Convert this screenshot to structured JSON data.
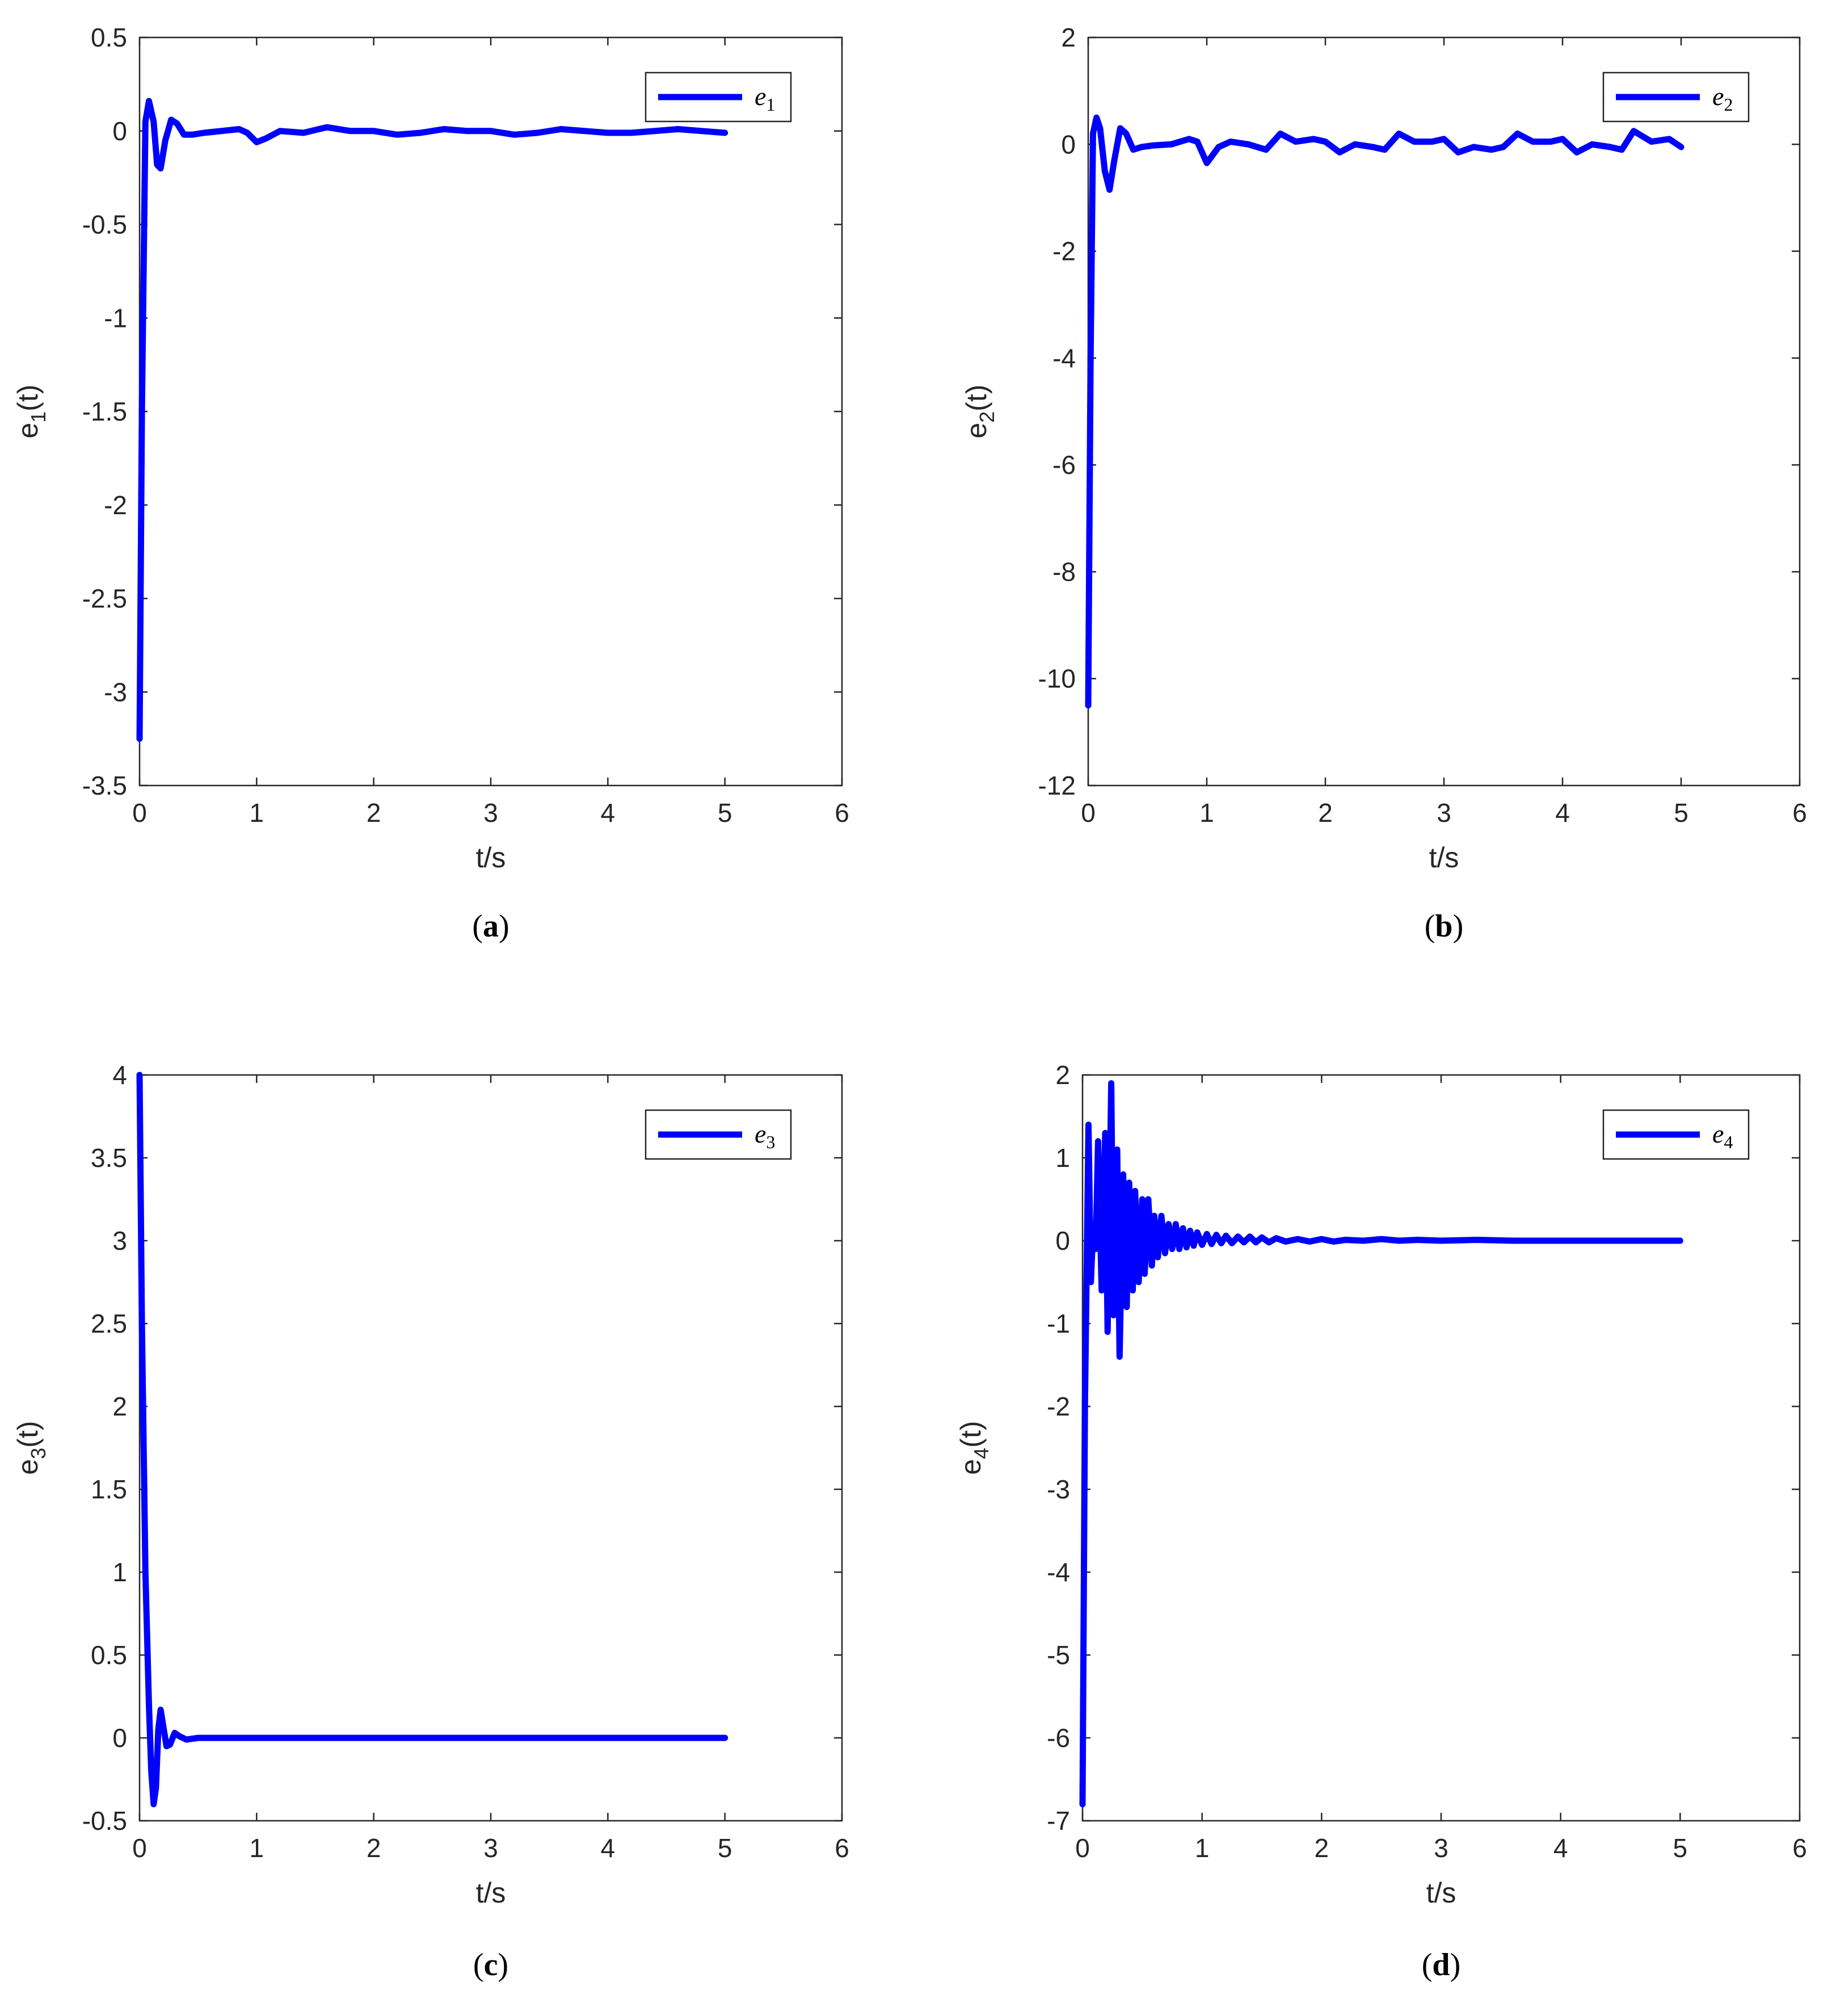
{
  "line_color": "#0000ff",
  "chart_data": [
    {
      "type": "line",
      "caption": "a",
      "xlabel": "t/s",
      "ylabel": "e",
      "ylabel_sub": "1",
      "ylabel_suffix": "(t)",
      "xlim": [
        0,
        6
      ],
      "ylim": [
        -3.5,
        0.5
      ],
      "xticks": [
        0,
        1,
        2,
        3,
        4,
        5,
        6
      ],
      "xtick_labels": [
        "0",
        "1",
        "2",
        "3",
        "4",
        "5",
        "6"
      ],
      "yticks": [
        -3.5,
        -3,
        -2.5,
        -2,
        -1.5,
        -1,
        -0.5,
        0,
        0.5
      ],
      "ytick_labels": [
        "-3.5",
        "-3",
        "-2.5",
        "-2",
        "-1.5",
        "-1",
        "-0.5",
        "0",
        "0.5"
      ],
      "grid": false,
      "legend_position": "top-right",
      "series": [
        {
          "name": "e",
          "name_sub": "1",
          "x": [
            0,
            0.02,
            0.05,
            0.08,
            0.12,
            0.15,
            0.18,
            0.22,
            0.27,
            0.32,
            0.38,
            0.45,
            0.55,
            0.7,
            0.85,
            0.92,
            1.0,
            1.08,
            1.2,
            1.4,
            1.6,
            1.8,
            2.0,
            2.2,
            2.4,
            2.6,
            2.8,
            3.0,
            3.2,
            3.4,
            3.6,
            3.8,
            4.0,
            4.2,
            4.4,
            4.6,
            4.8,
            5.0
          ],
          "y": [
            -3.25,
            -1.5,
            0.05,
            0.16,
            0.05,
            -0.18,
            -0.2,
            -0.05,
            0.06,
            0.04,
            -0.02,
            -0.02,
            -0.01,
            0.0,
            0.01,
            -0.01,
            -0.06,
            -0.04,
            0.0,
            -0.01,
            0.02,
            0.0,
            0.0,
            -0.02,
            -0.01,
            0.01,
            0.0,
            0.0,
            -0.02,
            -0.01,
            0.01,
            0.0,
            -0.01,
            -0.01,
            0.0,
            0.01,
            0.0,
            -0.01
          ]
        }
      ]
    },
    {
      "type": "line",
      "caption": "b",
      "xlabel": "t/s",
      "ylabel": "e",
      "ylabel_sub": "2",
      "ylabel_suffix": "(t)",
      "xlim": [
        0,
        6
      ],
      "ylim": [
        -12,
        2
      ],
      "xticks": [
        0,
        1,
        2,
        3,
        4,
        5,
        6
      ],
      "xtick_labels": [
        "0",
        "1",
        "2",
        "3",
        "4",
        "5",
        "6"
      ],
      "yticks": [
        -12,
        -10,
        -8,
        -6,
        -4,
        -2,
        0,
        2
      ],
      "ytick_labels": [
        "-12",
        "-10",
        "-8",
        "-6",
        "-4",
        "-2",
        "0",
        "2"
      ],
      "grid": false,
      "legend_position": "top-right",
      "series": [
        {
          "name": "e",
          "name_sub": "2",
          "x": [
            0,
            0.02,
            0.04,
            0.07,
            0.1,
            0.14,
            0.18,
            0.22,
            0.27,
            0.32,
            0.38,
            0.45,
            0.55,
            0.7,
            0.85,
            0.92,
            1.0,
            1.1,
            1.2,
            1.35,
            1.5,
            1.62,
            1.75,
            1.9,
            2.0,
            2.12,
            2.25,
            2.4,
            2.5,
            2.62,
            2.75,
            2.9,
            3.0,
            3.12,
            3.25,
            3.4,
            3.5,
            3.62,
            3.75,
            3.9,
            4.0,
            4.12,
            4.25,
            4.4,
            4.5,
            4.6,
            4.75,
            4.9,
            5.0
          ],
          "y": [
            -10.5,
            -4.0,
            0.2,
            0.5,
            0.3,
            -0.5,
            -0.85,
            -0.3,
            0.3,
            0.2,
            -0.1,
            -0.05,
            -0.02,
            0.0,
            0.1,
            0.05,
            -0.35,
            -0.05,
            0.05,
            0.0,
            -0.1,
            0.2,
            0.05,
            0.1,
            0.05,
            -0.15,
            0.0,
            -0.05,
            -0.1,
            0.2,
            0.05,
            0.05,
            0.1,
            -0.15,
            -0.05,
            -0.1,
            -0.05,
            0.2,
            0.05,
            0.05,
            0.1,
            -0.15,
            0.0,
            -0.05,
            -0.1,
            0.25,
            0.05,
            0.1,
            -0.05
          ]
        }
      ]
    },
    {
      "type": "line",
      "caption": "c",
      "xlabel": "t/s",
      "ylabel": "e",
      "ylabel_sub": "3",
      "ylabel_suffix": "(t)",
      "xlim": [
        0,
        6
      ],
      "ylim": [
        -0.5,
        4
      ],
      "xticks": [
        0,
        1,
        2,
        3,
        4,
        5,
        6
      ],
      "xtick_labels": [
        "0",
        "1",
        "2",
        "3",
        "4",
        "5",
        "6"
      ],
      "yticks": [
        -0.5,
        0,
        0.5,
        1,
        1.5,
        2,
        2.5,
        3,
        3.5,
        4
      ],
      "ytick_labels": [
        "-0.5",
        "0",
        "0.5",
        "1",
        "1.5",
        "2",
        "2.5",
        "3",
        "3.5",
        "4"
      ],
      "grid": false,
      "legend_position": "top-right",
      "series": [
        {
          "name": "e",
          "name_sub": "3",
          "x": [
            0,
            0.02,
            0.05,
            0.08,
            0.1,
            0.12,
            0.14,
            0.16,
            0.18,
            0.2,
            0.23,
            0.26,
            0.3,
            0.34,
            0.4,
            0.5,
            0.7,
            1.0,
            2.0,
            3.0,
            4.0,
            5.0
          ],
          "y": [
            4.0,
            2.5,
            1.0,
            0.2,
            -0.2,
            -0.4,
            -0.3,
            0.05,
            0.17,
            0.08,
            -0.05,
            -0.04,
            0.03,
            0.01,
            -0.01,
            0.0,
            0.0,
            0.0,
            0.0,
            0.0,
            0.0,
            0.0
          ]
        }
      ]
    },
    {
      "type": "line",
      "caption": "d",
      "xlabel": "t/s",
      "ylabel": "e",
      "ylabel_sub": "4",
      "ylabel_suffix": "(t)",
      "xlim": [
        0,
        6
      ],
      "ylim": [
        -7,
        2
      ],
      "xticks": [
        0,
        1,
        2,
        3,
        4,
        5,
        6
      ],
      "xtick_labels": [
        "0",
        "1",
        "2",
        "3",
        "4",
        "5",
        "6"
      ],
      "yticks": [
        -7,
        -6,
        -5,
        -4,
        -3,
        -2,
        -1,
        0,
        1,
        2
      ],
      "ytick_labels": [
        "-7",
        "-6",
        "-5",
        "-4",
        "-3",
        "-2",
        "-1",
        "0",
        "1",
        "2"
      ],
      "grid": false,
      "legend_position": "top-right",
      "series": [
        {
          "name": "e",
          "name_sub": "4",
          "x": [
            0,
            0.02,
            0.05,
            0.07,
            0.09,
            0.11,
            0.13,
            0.16,
            0.19,
            0.21,
            0.24,
            0.26,
            0.29,
            0.31,
            0.34,
            0.37,
            0.39,
            0.42,
            0.44,
            0.47,
            0.5,
            0.52,
            0.55,
            0.58,
            0.6,
            0.63,
            0.66,
            0.69,
            0.72,
            0.75,
            0.78,
            0.81,
            0.84,
            0.87,
            0.9,
            0.93,
            0.96,
            1.0,
            1.04,
            1.08,
            1.12,
            1.16,
            1.2,
            1.25,
            1.3,
            1.35,
            1.4,
            1.45,
            1.5,
            1.56,
            1.62,
            1.7,
            1.8,
            1.9,
            2.0,
            2.1,
            2.2,
            2.35,
            2.5,
            2.65,
            2.8,
            3.0,
            3.3,
            3.6,
            4.0,
            4.5,
            5.0
          ],
          "y": [
            -6.8,
            -2.0,
            1.4,
            -0.5,
            0.2,
            -0.1,
            1.2,
            -0.6,
            1.3,
            -1.1,
            1.9,
            -0.9,
            1.1,
            -1.4,
            0.8,
            -0.8,
            0.7,
            -0.6,
            0.6,
            -0.5,
            0.5,
            -0.4,
            0.5,
            -0.3,
            0.3,
            -0.2,
            0.3,
            -0.15,
            0.2,
            -0.1,
            0.2,
            -0.1,
            0.15,
            -0.08,
            0.12,
            -0.06,
            0.1,
            -0.05,
            0.08,
            -0.04,
            0.07,
            -0.03,
            0.06,
            -0.03,
            0.05,
            -0.02,
            0.05,
            -0.02,
            0.04,
            -0.02,
            0.03,
            -0.01,
            0.02,
            -0.01,
            0.02,
            -0.01,
            0.01,
            0.0,
            0.02,
            0.0,
            0.01,
            0.0,
            0.01,
            0.0,
            0.0,
            0.0,
            0.0
          ]
        }
      ]
    }
  ]
}
